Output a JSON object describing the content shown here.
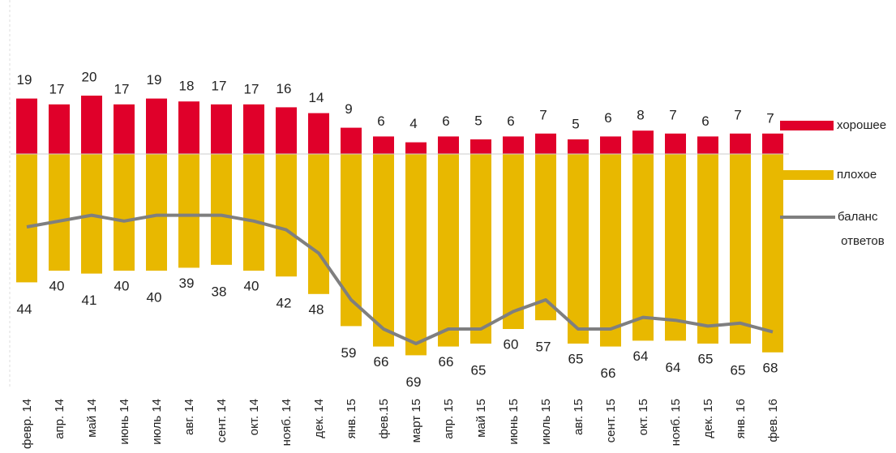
{
  "chart_data": {
    "type": "bar",
    "categories": [
      "февр. 14",
      "апр. 14",
      "май 14",
      "июнь 14",
      "июль 14",
      "авг. 14",
      "сент. 14",
      "окт. 14",
      "нояб. 14",
      "дек. 14",
      "янв. 15",
      "фев.15",
      "март 15",
      "апр. 15",
      "май 15",
      "июнь 15",
      "июль 15",
      "авг. 15",
      "сент. 15",
      "окт. 15",
      "нояб. 15",
      "дек. 15",
      "янв. 16",
      "фев. 16"
    ],
    "series": [
      {
        "name": "хорошее",
        "type": "bar",
        "color": "#e0002a",
        "values": [
          19,
          17,
          20,
          17,
          19,
          18,
          17,
          17,
          16,
          14,
          9,
          6,
          4,
          6,
          5,
          6,
          7,
          5,
          6,
          8,
          7,
          6,
          7,
          7
        ]
      },
      {
        "name": "плохое",
        "type": "bar",
        "color": "#e8b800",
        "values": [
          -44,
          -40,
          -41,
          -40,
          -40,
          -39,
          -38,
          -40,
          -42,
          -48,
          -59,
          -66,
          -69,
          -66,
          -65,
          -60,
          -57,
          -65,
          -66,
          -64,
          -64,
          -65,
          -65,
          -68
        ],
        "value_labels": [
          "44",
          "40",
          "41",
          "40",
          "40",
          "39",
          "38",
          "40",
          "42",
          "48",
          "59",
          "66",
          "69",
          "66",
          "65",
          "60",
          "57",
          "65",
          "66",
          "64",
          "64",
          "65",
          "65",
          "68"
        ]
      },
      {
        "name": "баланс ответов",
        "type": "line",
        "color": "#7f7f7f",
        "values": [
          -25,
          -23,
          -21,
          -23,
          -21,
          -21,
          -21,
          -23,
          -26,
          -34,
          -50,
          -60,
          -65,
          -60,
          -60,
          -54,
          -50,
          -60,
          -60,
          -56,
          -57,
          -59,
          -58,
          -61
        ]
      }
    ],
    "ylim": [
      -75,
      25
    ]
  }
}
